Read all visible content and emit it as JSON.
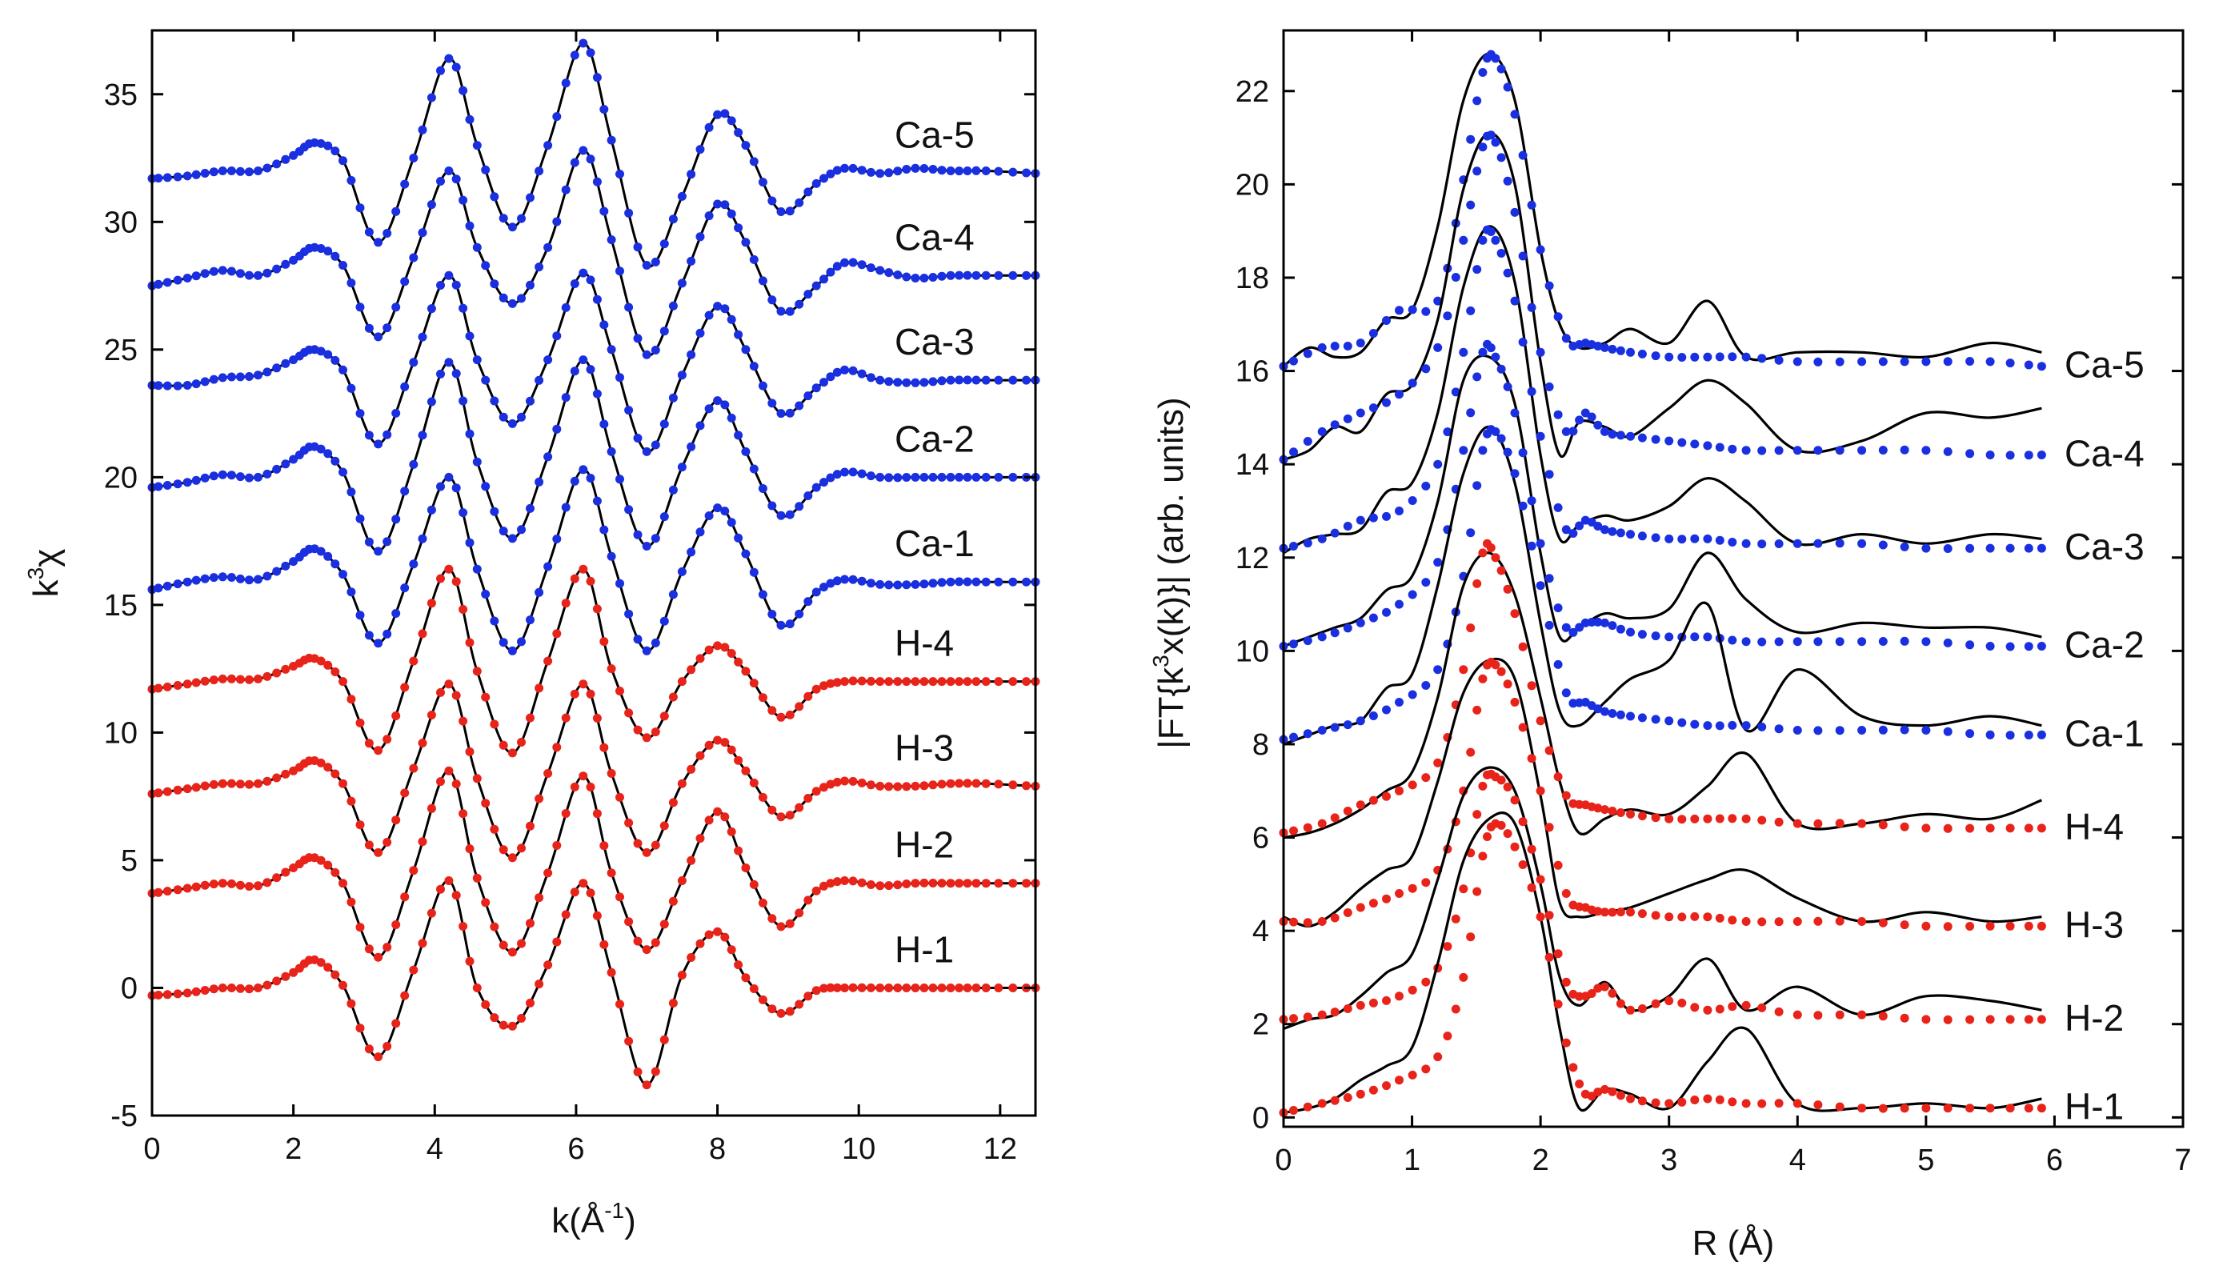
{
  "chart_data": [
    {
      "type": "line",
      "panel": "left",
      "xlabel": "k(Å⁻¹)",
      "xlabel_parts": {
        "base": "k(Å",
        "sup": "-1",
        "end": ")"
      },
      "ylabel": "k³χ",
      "ylabel_parts": {
        "base": "k",
        "sup": "3",
        "end": "χ"
      },
      "xlim": [
        0,
        12.5
      ],
      "ylim": [
        -5,
        37.5
      ],
      "xticks": [
        0,
        2,
        4,
        6,
        8,
        10,
        12
      ],
      "yticks": [
        -5,
        0,
        5,
        10,
        15,
        20,
        25,
        30,
        35
      ],
      "grid": false,
      "x": [
        0,
        0.5,
        1,
        1.5,
        2,
        2.3,
        2.7,
        3.2,
        3.7,
        4.2,
        4.6,
        5.1,
        5.6,
        6.1,
        6.5,
        7.0,
        7.5,
        8.0,
        8.4,
        8.9,
        9.4,
        9.8,
        10.3,
        10.8,
        11.3,
        11.8,
        12.5
      ],
      "series": [
        {
          "name": "Ca-5",
          "color": "#1a2fe0",
          "line": "#000000",
          "values": [
            31.7,
            31.8,
            32.0,
            32.0,
            32.6,
            33.1,
            32.4,
            29.2,
            32.5,
            36.4,
            33.0,
            29.8,
            33.0,
            37.0,
            33.2,
            28.3,
            31.0,
            34.2,
            33.0,
            30.4,
            31.5,
            32.1,
            31.9,
            32.1,
            32.0,
            32.0,
            31.9
          ]
        },
        {
          "name": "Ca-4",
          "color": "#1a2fe0",
          "line": "#000000",
          "values": [
            27.5,
            27.8,
            28.1,
            27.9,
            28.5,
            29.0,
            28.3,
            25.5,
            28.6,
            32.0,
            29.0,
            26.8,
            29.0,
            32.8,
            29.3,
            24.8,
            27.6,
            30.7,
            29.2,
            26.5,
            27.5,
            28.4,
            28.1,
            27.8,
            27.9,
            27.9,
            27.9
          ]
        },
        {
          "name": "Ca-3",
          "color": "#1a2fe0",
          "line": "#000000",
          "values": [
            23.6,
            23.6,
            23.9,
            24.0,
            24.6,
            25.0,
            24.2,
            21.3,
            24.5,
            27.9,
            24.6,
            22.1,
            24.6,
            28.0,
            25.0,
            21.0,
            24.0,
            26.7,
            25.0,
            22.5,
            23.5,
            24.2,
            23.8,
            23.7,
            23.8,
            23.8,
            23.8
          ]
        },
        {
          "name": "Ca-2",
          "color": "#1a2fe0",
          "line": "#000000",
          "values": [
            19.6,
            19.8,
            20.1,
            20.0,
            20.7,
            21.2,
            20.2,
            17.1,
            20.5,
            24.5,
            20.6,
            17.6,
            20.8,
            24.6,
            21.0,
            17.3,
            20.4,
            23.0,
            21.0,
            18.5,
            19.6,
            20.2,
            20.0,
            20.0,
            20.0,
            20.0,
            20.0
          ]
        },
        {
          "name": "Ca-1",
          "color": "#1a2fe0",
          "line": "#000000",
          "values": [
            15.6,
            15.9,
            16.1,
            16.0,
            16.7,
            17.2,
            16.2,
            13.5,
            16.6,
            20.0,
            16.4,
            13.2,
            16.5,
            20.3,
            16.9,
            13.2,
            16.3,
            18.8,
            17.0,
            14.2,
            15.5,
            16.0,
            15.8,
            15.8,
            15.9,
            15.9,
            15.9
          ]
        },
        {
          "name": "H-4",
          "color": "#e8231a",
          "line": "#000000",
          "values": [
            11.7,
            11.9,
            12.1,
            12.1,
            12.6,
            12.9,
            12.0,
            9.3,
            12.8,
            16.4,
            12.4,
            9.2,
            12.8,
            16.4,
            12.5,
            9.8,
            12.0,
            13.4,
            12.4,
            10.6,
            11.7,
            12.0,
            12.0,
            12.0,
            12.0,
            12.0,
            12.0
          ]
        },
        {
          "name": "H-3",
          "color": "#e8231a",
          "line": "#000000",
          "values": [
            7.6,
            7.8,
            8.0,
            8.0,
            8.5,
            8.9,
            8.0,
            5.3,
            8.6,
            11.9,
            8.2,
            5.1,
            8.4,
            11.9,
            8.4,
            5.3,
            8.0,
            9.7,
            8.5,
            6.7,
            7.7,
            8.1,
            7.9,
            7.9,
            8.0,
            8.0,
            7.9
          ]
        },
        {
          "name": "H-2",
          "color": "#e8231a",
          "line": "#000000",
          "values": [
            3.7,
            3.9,
            4.1,
            4.0,
            4.7,
            5.1,
            4.1,
            1.2,
            4.6,
            8.5,
            4.3,
            1.4,
            4.5,
            8.3,
            4.5,
            1.5,
            4.2,
            6.9,
            4.7,
            2.4,
            3.8,
            4.2,
            4.0,
            4.1,
            4.1,
            4.1,
            4.1
          ]
        },
        {
          "name": "H-1",
          "color": "#e8231a",
          "line": "#000000",
          "values": [
            -0.3,
            -0.2,
            0.0,
            0.0,
            0.6,
            1.1,
            0.1,
            -2.7,
            0.7,
            4.2,
            0.0,
            -1.5,
            0.9,
            4.1,
            0.6,
            -3.8,
            0.5,
            2.2,
            0.4,
            -1.0,
            -0.1,
            0.0,
            0.0,
            0.0,
            0.0,
            0.0,
            0.0
          ]
        }
      ]
    },
    {
      "type": "line",
      "panel": "right",
      "xlabel": "R (Å)",
      "ylabel": "|FT{k³x(k)}| (arb. units)",
      "ylabel_parts": {
        "base": "|FT{k",
        "sup": "3",
        "end": "x(k)}| (arb. units)"
      },
      "xlim": [
        0,
        7
      ],
      "ylim": [
        -0.2,
        23.3
      ],
      "xticks": [
        0,
        1,
        2,
        3,
        4,
        5,
        6,
        7
      ],
      "yticks": [
        0,
        2,
        4,
        6,
        8,
        10,
        12,
        14,
        16,
        18,
        20,
        22
      ],
      "grid": false,
      "x_fit": [
        0,
        0.2,
        0.4,
        0.6,
        0.8,
        1.0,
        1.2,
        1.4,
        1.6,
        1.8,
        2.0,
        2.15,
        2.3,
        2.5,
        2.7,
        3.0,
        3.3,
        3.6,
        4.0,
        4.5,
        5.0,
        5.5,
        5.9
      ],
      "x_exp": [
        0,
        0.3,
        0.6,
        0.9,
        1.2,
        1.4,
        1.55,
        1.65,
        1.8,
        2.0,
        2.2,
        2.35,
        2.5,
        2.7,
        3.0,
        3.3,
        3.6,
        4.0,
        4.5,
        5.0,
        5.5,
        5.9
      ],
      "series": [
        {
          "name": "Ca-5",
          "color": "#1a2fe0",
          "line": "#000000",
          "fit": [
            16.1,
            16.5,
            16.3,
            16.4,
            17.1,
            17.3,
            19.1,
            21.8,
            22.8,
            21.8,
            18.6,
            17.0,
            16.5,
            16.6,
            16.9,
            16.6,
            17.5,
            16.3,
            16.4,
            16.4,
            16.3,
            16.6,
            16.4
          ],
          "exp": [
            16.1,
            16.5,
            16.6,
            17.3,
            17.5,
            20.1,
            22.4,
            22.7,
            21.5,
            18.6,
            16.7,
            16.6,
            16.5,
            16.4,
            16.3,
            16.3,
            16.3,
            16.2,
            16.2,
            16.2,
            16.2,
            16.1
          ]
        },
        {
          "name": "Ca-4",
          "color": "#1a2fe0",
          "line": "#000000",
          "fit": [
            14.1,
            14.3,
            14.8,
            14.7,
            15.5,
            15.7,
            17.1,
            19.9,
            21.1,
            20.0,
            16.2,
            14.2,
            14.9,
            14.8,
            14.6,
            15.2,
            15.8,
            15.3,
            14.3,
            14.5,
            15.1,
            15.0,
            15.2
          ],
          "exp": [
            14.1,
            14.7,
            15.1,
            15.5,
            16.5,
            18.8,
            20.8,
            20.9,
            19.4,
            16.4,
            14.7,
            15.1,
            14.7,
            14.6,
            14.5,
            14.4,
            14.3,
            14.3,
            14.3,
            14.3,
            14.2,
            14.2
          ]
        },
        {
          "name": "Ca-3",
          "color": "#1a2fe0",
          "line": "#000000",
          "fit": [
            12.1,
            12.4,
            12.5,
            12.6,
            13.4,
            13.6,
            15.1,
            17.8,
            19.1,
            17.9,
            14.2,
            12.4,
            12.7,
            12.9,
            12.8,
            13.1,
            13.7,
            13.2,
            12.3,
            12.5,
            12.3,
            12.5,
            12.4
          ],
          "exp": [
            12.2,
            12.4,
            12.8,
            13.0,
            14.0,
            16.4,
            18.8,
            18.8,
            17.5,
            14.6,
            12.6,
            12.8,
            12.6,
            12.5,
            12.4,
            12.4,
            12.3,
            12.3,
            12.3,
            12.2,
            12.2,
            12.2
          ]
        },
        {
          "name": "Ca-2",
          "color": "#1a2fe0",
          "line": "#000000",
          "fit": [
            10.1,
            10.3,
            10.5,
            10.7,
            11.3,
            11.6,
            13.2,
            15.8,
            16.3,
            15.3,
            12.1,
            10.3,
            10.5,
            10.8,
            10.7,
            10.9,
            12.1,
            11.1,
            10.4,
            10.6,
            10.5,
            10.5,
            10.3
          ],
          "exp": [
            10.1,
            10.3,
            10.6,
            11.0,
            11.9,
            14.3,
            16.4,
            16.3,
            15.1,
            12.3,
            10.5,
            10.6,
            10.6,
            10.4,
            10.3,
            10.3,
            10.2,
            10.2,
            10.2,
            10.2,
            10.1,
            10.1
          ]
        },
        {
          "name": "Ca-1",
          "color": "#1a2fe0",
          "line": "#000000",
          "fit": [
            8.0,
            8.2,
            8.4,
            8.5,
            9.2,
            9.5,
            11.4,
            13.8,
            14.8,
            13.6,
            10.6,
            8.7,
            8.4,
            8.9,
            9.4,
            9.8,
            11.0,
            8.3,
            9.6,
            8.6,
            8.4,
            8.6,
            8.4
          ],
          "exp": [
            8.1,
            8.3,
            8.5,
            8.9,
            9.6,
            11.6,
            14.3,
            14.7,
            13.8,
            11.4,
            9.1,
            8.9,
            8.7,
            8.6,
            8.5,
            8.4,
            8.4,
            8.3,
            8.3,
            8.3,
            8.2,
            8.2
          ]
        },
        {
          "name": "H-4",
          "color": "#e8231a",
          "line": "#000000",
          "fit": [
            6.0,
            6.1,
            6.3,
            6.6,
            7.0,
            7.4,
            9.0,
            11.4,
            12.1,
            11.2,
            9.0,
            7.2,
            6.1,
            6.4,
            6.6,
            6.5,
            7.1,
            7.8,
            6.3,
            6.3,
            6.5,
            6.4,
            6.8
          ],
          "exp": [
            6.1,
            6.3,
            6.7,
            7.0,
            7.6,
            9.6,
            12.1,
            12.0,
            10.8,
            8.5,
            6.9,
            6.7,
            6.6,
            6.5,
            6.4,
            6.4,
            6.4,
            6.3,
            6.3,
            6.2,
            6.2,
            6.2
          ]
        },
        {
          "name": "H-3",
          "color": "#e8231a",
          "line": "#000000",
          "fit": [
            4.3,
            4.1,
            4.4,
            4.9,
            5.3,
            5.6,
            7.2,
            9.1,
            9.8,
            9.4,
            6.9,
            4.6,
            4.3,
            4.4,
            4.5,
            4.8,
            5.1,
            5.3,
            4.7,
            4.2,
            4.4,
            4.2,
            4.3
          ],
          "exp": [
            4.2,
            4.2,
            4.5,
            4.8,
            5.3,
            7.0,
            9.4,
            9.7,
            8.9,
            7.0,
            4.8,
            4.5,
            4.4,
            4.4,
            4.3,
            4.3,
            4.2,
            4.2,
            4.2,
            4.1,
            4.1,
            4.1
          ]
        },
        {
          "name": "H-2",
          "color": "#e8231a",
          "line": "#000000",
          "fit": [
            1.9,
            2.1,
            2.2,
            2.6,
            3.1,
            3.5,
            5.1,
            6.9,
            7.5,
            7.0,
            5.0,
            3.0,
            2.4,
            2.9,
            2.3,
            2.6,
            3.4,
            2.3,
            2.8,
            2.2,
            2.6,
            2.5,
            2.3
          ],
          "exp": [
            2.1,
            2.2,
            2.4,
            2.6,
            3.2,
            4.9,
            7.1,
            7.3,
            6.8,
            5.1,
            2.9,
            2.6,
            2.8,
            2.3,
            2.5,
            2.3,
            2.4,
            2.2,
            2.2,
            2.1,
            2.1,
            2.1
          ]
        },
        {
          "name": "H-1",
          "color": "#e8231a",
          "line": "#000000",
          "fit": [
            0.1,
            0.2,
            0.4,
            0.8,
            1.1,
            1.5,
            3.3,
            5.5,
            6.4,
            6.3,
            4.3,
            1.9,
            0.2,
            0.6,
            0.5,
            0.2,
            1.2,
            1.9,
            0.3,
            0.2,
            0.3,
            0.2,
            0.4
          ],
          "exp": [
            0.1,
            0.3,
            0.5,
            0.8,
            1.3,
            3.0,
            5.6,
            6.3,
            5.8,
            4.3,
            1.6,
            0.5,
            0.6,
            0.4,
            0.3,
            0.4,
            0.3,
            0.3,
            0.2,
            0.2,
            0.2,
            0.2
          ]
        }
      ]
    }
  ]
}
